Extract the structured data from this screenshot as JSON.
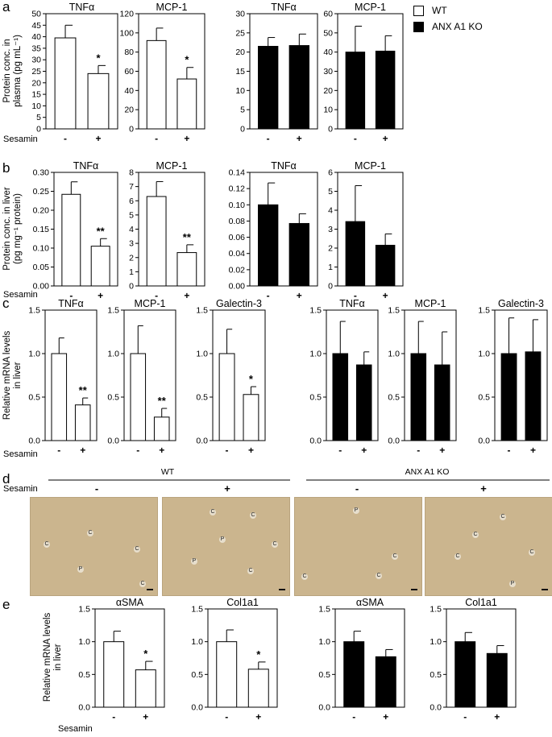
{
  "legend": {
    "items": [
      {
        "label": "WT",
        "fill": "#ffffff"
      },
      {
        "label": "ANX A1 KO",
        "fill": "#000000"
      }
    ]
  },
  "panel_letters": [
    "a",
    "b",
    "c",
    "d",
    "e"
  ],
  "treatment_label": "Sesamin",
  "treatment_ticks": [
    "-",
    "+"
  ],
  "rows": {
    "a": {
      "ylabel_lines": [
        "Protein conc. in",
        "plasma (pg mL⁻¹)"
      ]
    },
    "b": {
      "ylabel_lines": [
        "Protein conc. in liver",
        "(pg mg⁻¹ protein)"
      ]
    },
    "c": {
      "ylabel_lines": [
        "Relative mRNA levels",
        "in liver"
      ]
    },
    "e": {
      "ylabel_lines": [
        "Relative mRNA levels",
        "in liver"
      ]
    }
  },
  "panel_d": {
    "group_labels": [
      "WT",
      "ANX A1 KO"
    ],
    "tick_labels": [
      "-",
      "+",
      "-",
      "+"
    ],
    "region_markers": [
      "C",
      "P"
    ]
  },
  "chart_data": [
    {
      "id": "a1",
      "type": "bar",
      "title": "TNFα",
      "group": "WT",
      "categories": [
        "-",
        "+"
      ],
      "values": [
        39.5,
        24
      ],
      "errors": [
        5.5,
        3.5
      ],
      "significance": [
        "",
        "*"
      ],
      "ylim": [
        0,
        50
      ],
      "yticks": [
        "0",
        "5",
        "10",
        "15",
        "20",
        "25",
        "30",
        "35",
        "40",
        "45",
        "50"
      ]
    },
    {
      "id": "a2",
      "type": "bar",
      "title": "MCP-1",
      "group": "WT",
      "categories": [
        "-",
        "+"
      ],
      "values": [
        92,
        52
      ],
      "errors": [
        13,
        12
      ],
      "significance": [
        "",
        "*"
      ],
      "ylim": [
        0,
        120
      ],
      "yticks": [
        "0",
        "20",
        "40",
        "60",
        "80",
        "100",
        "120"
      ]
    },
    {
      "id": "a3",
      "type": "bar",
      "title": "TNFα",
      "group": "ANX A1 KO",
      "categories": [
        "-",
        "+"
      ],
      "values": [
        21.5,
        21.7
      ],
      "errors": [
        2.3,
        3
      ],
      "significance": [
        "",
        ""
      ],
      "ylim": [
        0,
        30
      ],
      "yticks": [
        "0",
        "5",
        "10",
        "15",
        "20",
        "25",
        "30"
      ]
    },
    {
      "id": "a4",
      "type": "bar",
      "title": "MCP-1",
      "group": "ANX A1 KO",
      "categories": [
        "-",
        "+"
      ],
      "values": [
        40,
        40.5
      ],
      "errors": [
        13.5,
        8
      ],
      "significance": [
        "",
        ""
      ],
      "ylim": [
        0,
        60
      ],
      "yticks": [
        "0",
        "10",
        "20",
        "30",
        "40",
        "50",
        "60"
      ]
    },
    {
      "id": "b1",
      "type": "bar",
      "title": "TNFα",
      "group": "WT",
      "categories": [
        "-",
        "+"
      ],
      "values": [
        0.242,
        0.105
      ],
      "errors": [
        0.033,
        0.02
      ],
      "significance": [
        "",
        "**"
      ],
      "ylim": [
        0,
        0.3
      ],
      "yticks": [
        "0.00",
        "0.05",
        "0.10",
        "0.15",
        "0.20",
        "0.25",
        "0.30"
      ]
    },
    {
      "id": "b2",
      "type": "bar",
      "title": "MCP-1",
      "group": "WT",
      "categories": [
        "-",
        "+"
      ],
      "values": [
        6.3,
        2.35
      ],
      "errors": [
        1.05,
        0.55
      ],
      "significance": [
        "",
        "**"
      ],
      "ylim": [
        0,
        8
      ],
      "yticks": [
        "0",
        "1",
        "2",
        "3",
        "4",
        "5",
        "6",
        "7",
        "8"
      ]
    },
    {
      "id": "b3",
      "type": "bar",
      "title": "TNFα",
      "group": "ANX A1 KO",
      "categories": [
        "-",
        "+"
      ],
      "values": [
        0.1,
        0.077
      ],
      "errors": [
        0.027,
        0.012
      ],
      "significance": [
        "",
        ""
      ],
      "ylim": [
        0,
        0.14
      ],
      "yticks": [
        "0.00",
        "0.02",
        "0.04",
        "0.06",
        "0.08",
        "0.10",
        "0.12",
        "0.14"
      ]
    },
    {
      "id": "b4",
      "type": "bar",
      "title": "MCP-1",
      "group": "ANX A1 KO",
      "categories": [
        "-",
        "+"
      ],
      "values": [
        3.4,
        2.15
      ],
      "errors": [
        1.9,
        0.6
      ],
      "significance": [
        "",
        ""
      ],
      "ylim": [
        0,
        6
      ],
      "yticks": [
        "0",
        "1",
        "2",
        "3",
        "4",
        "5",
        "6"
      ]
    },
    {
      "id": "c1",
      "type": "bar",
      "title": "TNFα",
      "group": "WT",
      "categories": [
        "-",
        "+"
      ],
      "values": [
        1.0,
        0.41
      ],
      "errors": [
        0.18,
        0.08
      ],
      "significance": [
        "",
        "**"
      ],
      "ylim": [
        0,
        1.5
      ],
      "yticks": [
        "0.0",
        "0.5",
        "1.0",
        "1.5"
      ]
    },
    {
      "id": "c2",
      "type": "bar",
      "title": "MCP-1",
      "group": "WT",
      "categories": [
        "-",
        "+"
      ],
      "values": [
        1.0,
        0.27
      ],
      "errors": [
        0.32,
        0.1
      ],
      "significance": [
        "",
        "**"
      ],
      "ylim": [
        0,
        1.5
      ],
      "yticks": [
        "0.0",
        "0.5",
        "1.0",
        "1.5"
      ]
    },
    {
      "id": "c3",
      "type": "bar",
      "title": "Galectin-3",
      "group": "WT",
      "categories": [
        "-",
        "+"
      ],
      "values": [
        1.0,
        0.53
      ],
      "errors": [
        0.28,
        0.09
      ],
      "significance": [
        "",
        "*"
      ],
      "ylim": [
        0,
        1.5
      ],
      "yticks": [
        "0.0",
        "0.5",
        "1.0",
        "1.5"
      ]
    },
    {
      "id": "c4",
      "type": "bar",
      "title": "TNFα",
      "group": "ANX A1 KO",
      "categories": [
        "-",
        "+"
      ],
      "values": [
        1.0,
        0.87
      ],
      "errors": [
        0.37,
        0.15
      ],
      "significance": [
        "",
        ""
      ],
      "ylim": [
        0,
        1.5
      ],
      "yticks": [
        "0.0",
        "0.5",
        "1.0",
        "1.5"
      ]
    },
    {
      "id": "c5",
      "type": "bar",
      "title": "MCP-1",
      "group": "ANX A1 KO",
      "categories": [
        "-",
        "+"
      ],
      "values": [
        1.0,
        0.87
      ],
      "errors": [
        0.37,
        0.38
      ],
      "significance": [
        "",
        ""
      ],
      "ylim": [
        0,
        1.5
      ],
      "yticks": [
        "0.0",
        "0.5",
        "1.0",
        "1.5"
      ]
    },
    {
      "id": "c6",
      "type": "bar",
      "title": "Galectin-3",
      "group": "ANX A1 KO",
      "categories": [
        "-",
        "+"
      ],
      "values": [
        1.0,
        1.02
      ],
      "errors": [
        0.41,
        0.37
      ],
      "significance": [
        "",
        ""
      ],
      "ylim": [
        0,
        1.5
      ],
      "yticks": [
        "0.0",
        "0.5",
        "1.0",
        "1.5"
      ]
    },
    {
      "id": "e1",
      "type": "bar",
      "title": "αSMA",
      "group": "WT",
      "categories": [
        "-",
        "+"
      ],
      "values": [
        1.0,
        0.57
      ],
      "errors": [
        0.16,
        0.13
      ],
      "significance": [
        "",
        "*"
      ],
      "ylim": [
        0,
        1.5
      ],
      "yticks": [
        "0.0",
        "0.5",
        "1.0",
        "1.5"
      ]
    },
    {
      "id": "e2",
      "type": "bar",
      "title": "Col1a1",
      "group": "WT",
      "categories": [
        "-",
        "+"
      ],
      "values": [
        1.0,
        0.58
      ],
      "errors": [
        0.18,
        0.11
      ],
      "significance": [
        "",
        "*"
      ],
      "ylim": [
        0,
        1.5
      ],
      "yticks": [
        "0.0",
        "0.5",
        "1.0",
        "1.5"
      ]
    },
    {
      "id": "e3",
      "type": "bar",
      "title": "αSMA",
      "group": "ANX A1 KO",
      "categories": [
        "-",
        "+"
      ],
      "values": [
        1.0,
        0.77
      ],
      "errors": [
        0.16,
        0.11
      ],
      "significance": [
        "",
        ""
      ],
      "ylim": [
        0,
        1.5
      ],
      "yticks": [
        "0.0",
        "0.5",
        "1.0",
        "1.5"
      ]
    },
    {
      "id": "e4",
      "type": "bar",
      "title": "Col1a1",
      "group": "ANX A1 KO",
      "categories": [
        "-",
        "+"
      ],
      "values": [
        1.0,
        0.82
      ],
      "errors": [
        0.14,
        0.12
      ],
      "significance": [
        "",
        ""
      ],
      "ylim": [
        0,
        1.5
      ],
      "yticks": [
        "0.0",
        "0.5",
        "1.0",
        "1.5"
      ]
    }
  ]
}
